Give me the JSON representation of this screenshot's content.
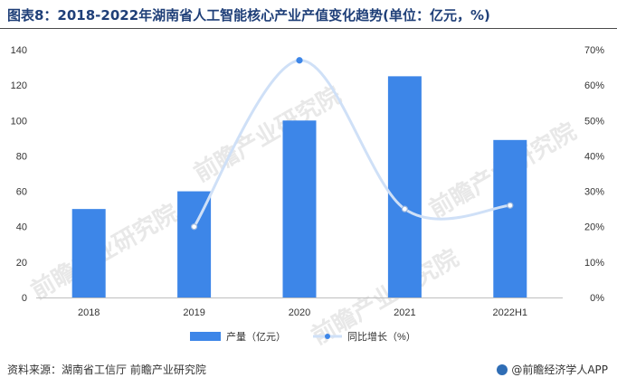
{
  "header": {
    "title": "图表8：2018-2022年湖南省人工智能核心产业产值变化趋势(单位：亿元，%)"
  },
  "footer": {
    "source": "资料来源：湖南省工信厅 前瞻产业研究院",
    "brand": "@前瞻经济学人APP"
  },
  "watermark": "前瞻产业研究院",
  "colors": {
    "bar": "#3d86e8",
    "line": "#cfe0f7",
    "marker": "#3d86e8"
  },
  "chart_data": {
    "type": "bar",
    "categories": [
      "2018",
      "2019",
      "2020",
      "2021",
      "2022H1"
    ],
    "series": [
      {
        "name": "产量（亿元）",
        "type": "bar",
        "axis": "left",
        "values": [
          50,
          60,
          100,
          125,
          89
        ]
      },
      {
        "name": "同比增长（%）",
        "type": "line",
        "axis": "right",
        "values": [
          null,
          20,
          67,
          25,
          26
        ]
      }
    ],
    "y_left": {
      "range": [
        0,
        140
      ],
      "ticks": [
        "0",
        "20",
        "40",
        "60",
        "80",
        "100",
        "120",
        "140"
      ]
    },
    "y_right": {
      "range": [
        0,
        70
      ],
      "ticks": [
        "0%",
        "10%",
        "20%",
        "30%",
        "40%",
        "50%",
        "60%",
        "70%"
      ]
    },
    "legend_position": "bottom-center",
    "grid": false
  }
}
